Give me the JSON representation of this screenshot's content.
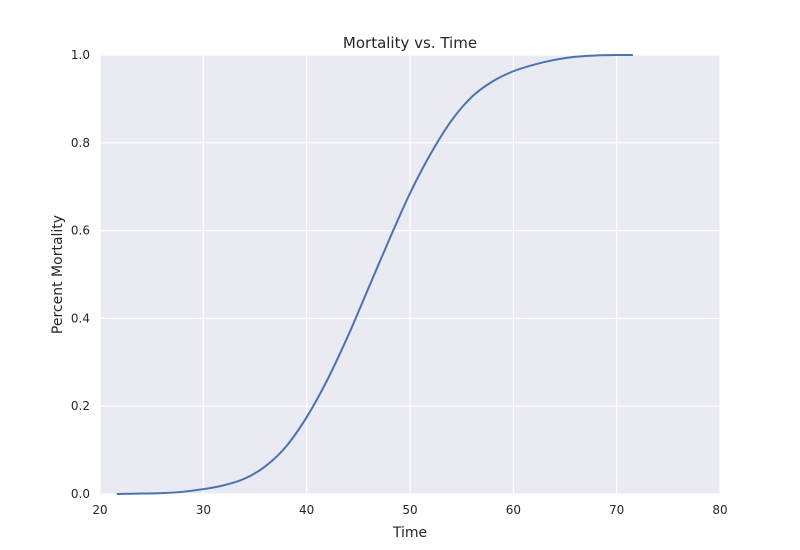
{
  "chart_data": {
    "type": "line",
    "title": "Mortality vs. Time",
    "xlabel": "Time",
    "ylabel": "Percent Mortality",
    "xlim": [
      20,
      80
    ],
    "ylim": [
      0.0,
      1.0
    ],
    "xticks": [
      "20",
      "30",
      "40",
      "50",
      "60",
      "70",
      "80"
    ],
    "yticks": [
      "0.0",
      "0.2",
      "0.4",
      "0.6",
      "0.8",
      "1.0"
    ],
    "grid": true,
    "background_color": "#EAEAF2",
    "grid_color": "#FFFFFF",
    "series": [
      {
        "color": "#4C72B0",
        "x": [
          21.7,
          24,
          26,
          28,
          30,
          32,
          34,
          36,
          38,
          40,
          42,
          44,
          46,
          48,
          50,
          52,
          54,
          56,
          58,
          60,
          62,
          64,
          66,
          68,
          70,
          71.5
        ],
        "y": [
          0.0,
          0.001,
          0.002,
          0.005,
          0.011,
          0.02,
          0.035,
          0.063,
          0.108,
          0.175,
          0.26,
          0.36,
          0.47,
          0.58,
          0.685,
          0.775,
          0.85,
          0.905,
          0.94,
          0.963,
          0.978,
          0.989,
          0.996,
          0.999,
          1.0,
          1.0
        ]
      }
    ]
  }
}
